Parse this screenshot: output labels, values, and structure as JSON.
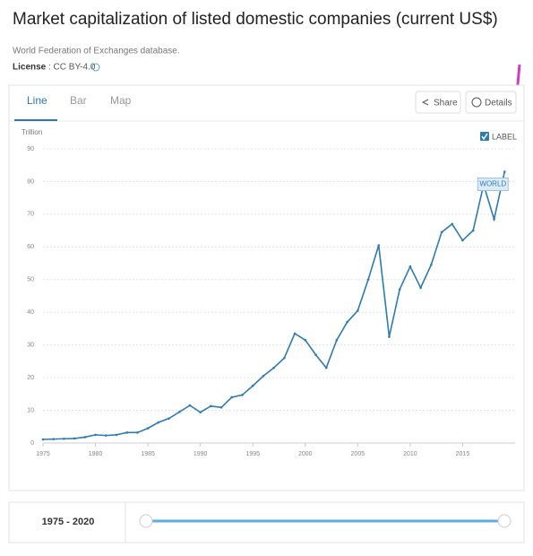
{
  "header": {
    "title": "Market capitalization of listed domestic companies (current US$)",
    "source": "World Federation of Exchanges database.",
    "license_label": "License",
    "license_value": ": CC BY-4.0"
  },
  "tabs": [
    "Line",
    "Bar",
    "Map"
  ],
  "buttons": {
    "share": "Share",
    "details": "Details"
  },
  "label_toggle": "LABEL",
  "range": "1975 - 2020",
  "chart_data": {
    "type": "line",
    "unit": "Trillion",
    "x": [
      1975,
      1976,
      1977,
      1978,
      1979,
      1980,
      1981,
      1982,
      1983,
      1984,
      1985,
      1986,
      1987,
      1988,
      1989,
      1990,
      1991,
      1992,
      1993,
      1994,
      1995,
      1996,
      1997,
      1998,
      1999,
      2000,
      2001,
      2002,
      2003,
      2004,
      2005,
      2006,
      2007,
      2008,
      2009,
      2010,
      2011,
      2012,
      2013,
      2014,
      2015,
      2016,
      2017,
      2018,
      2019
    ],
    "series": [
      {
        "name": "WORLD",
        "color": "#2e7bb0",
        "values": [
          1.1,
          1.2,
          1.3,
          1.4,
          1.8,
          2.5,
          2.3,
          2.5,
          3.2,
          3.2,
          4.5,
          6.3,
          7.5,
          9.5,
          11.5,
          9.4,
          11.3,
          10.9,
          14,
          14.7,
          17.5,
          20.5,
          23,
          26,
          33.5,
          31.5,
          27,
          23,
          31.5,
          37,
          40.5,
          50,
          60.5,
          32.5,
          47,
          54,
          47.5,
          54.5,
          64.5,
          67,
          62,
          65,
          79,
          68.5,
          83
        ]
      }
    ],
    "xlim": [
      1975,
      2020
    ],
    "xticks": [
      1975,
      1980,
      1985,
      1990,
      1995,
      2000,
      2005,
      2010,
      2015
    ],
    "ylim": [
      0,
      90
    ],
    "yticks": [
      0,
      10,
      20,
      30,
      40,
      50,
      60,
      70,
      80,
      90
    ],
    "grid": true
  }
}
